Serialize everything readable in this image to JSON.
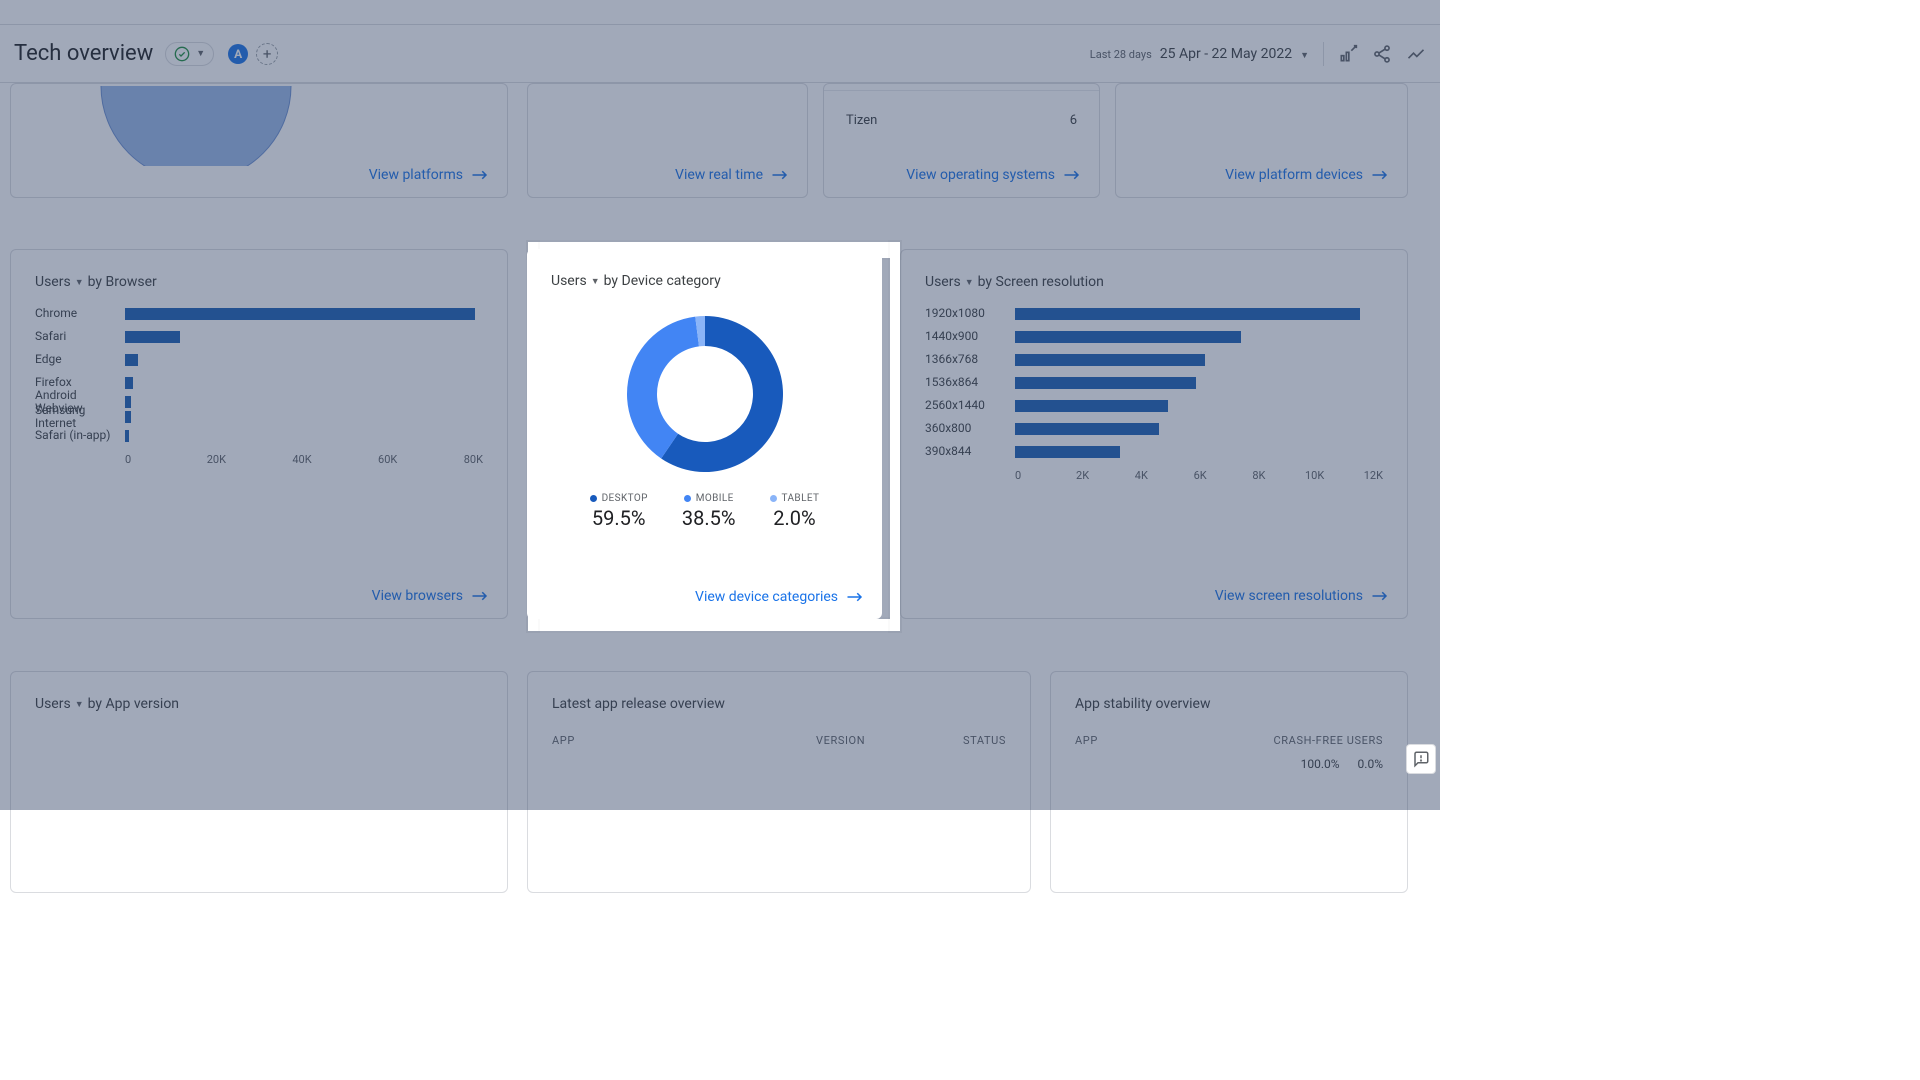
{
  "header": {
    "title": "Tech overview",
    "badge": "A",
    "date_small": "Last 28 days",
    "date_range": "25 Apr - 22 May 2022"
  },
  "row1": {
    "platforms_link": "View platforms",
    "realtime_link": "View real time",
    "os_link": "View operating systems",
    "platdev_link": "View platform devices",
    "os_last_row": {
      "label": "Tizen",
      "value": "6"
    },
    "partial_donut_color": "#9ab8e8"
  },
  "browser_card": {
    "metric": "Users",
    "by": "by Browser",
    "type": "horizontal_bar",
    "max": 85000,
    "ticks": [
      "0",
      "20K",
      "40K",
      "60K",
      "80K"
    ],
    "bar_color": "#1a5fb4",
    "rows": [
      {
        "label": "Chrome",
        "value": 83000
      },
      {
        "label": "Safari",
        "value": 13000
      },
      {
        "label": "Edge",
        "value": 3000
      },
      {
        "label": "Firefox",
        "value": 1800
      },
      {
        "label": "Android Webview",
        "value": 1500,
        "tight": true
      },
      {
        "label": "Samsung Internet",
        "value": 1400,
        "tight": true
      },
      {
        "label": "Safari (in-app)",
        "value": 900
      }
    ],
    "link": "View browsers"
  },
  "device_card": {
    "metric": "Users",
    "by": "by Device category",
    "type": "donut",
    "colors": {
      "desktop": "#185abc",
      "mobile": "#4285f4",
      "tablet": "#8ab4f8"
    },
    "segments": [
      {
        "key": "DESKTOP",
        "pct": "59.5%",
        "value": 59.5
      },
      {
        "key": "MOBILE",
        "pct": "38.5%",
        "value": 38.5
      },
      {
        "key": "TABLET",
        "pct": "2.0%",
        "value": 2.0
      }
    ],
    "link": "View device categories"
  },
  "screen_card": {
    "metric": "Users",
    "by": "by Screen resolution",
    "type": "horizontal_bar",
    "max": 13000,
    "ticks": [
      "0",
      "2K",
      "4K",
      "6K",
      "8K",
      "10K",
      "12K"
    ],
    "bar_color": "#1a5fb4",
    "rows": [
      {
        "label": "1920x1080",
        "value": 12200
      },
      {
        "label": "1440x900",
        "value": 8000
      },
      {
        "label": "1366x768",
        "value": 6700
      },
      {
        "label": "1536x864",
        "value": 6400
      },
      {
        "label": "2560x1440",
        "value": 5400
      },
      {
        "label": "360x800",
        "value": 5100
      },
      {
        "label": "390x844",
        "value": 3700
      }
    ],
    "link": "View screen resolutions"
  },
  "appver_card": {
    "metric": "Users",
    "by": "by App version"
  },
  "release_card": {
    "title": "Latest app release overview",
    "cols": [
      "APP",
      "VERSION",
      "STATUS"
    ]
  },
  "stability_card": {
    "title": "App stability overview",
    "cols": [
      "APP",
      "CRASH-FREE USERS"
    ],
    "vals": [
      "100.0%",
      "0.0%"
    ]
  }
}
